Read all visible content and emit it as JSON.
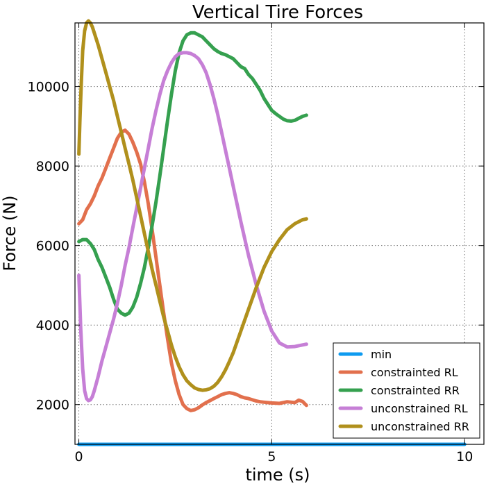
{
  "chart_data": {
    "type": "line",
    "title": "Vertical Tire Forces",
    "xlabel": "time (s)",
    "ylabel": "Force (N)",
    "xlim": [
      -0.1,
      10.5
    ],
    "ylim": [
      1000,
      11600
    ],
    "x_ticks": [
      0,
      5,
      10
    ],
    "y_ticks": [
      2000,
      4000,
      6000,
      8000,
      10000
    ],
    "x_tick_labels": [
      "0",
      "5",
      "10"
    ],
    "y_tick_labels": [
      "2000",
      "4000",
      "6000",
      "8000",
      "10000"
    ],
    "grid": true,
    "legend_position": "bottom-right",
    "series": [
      {
        "name": "min",
        "color": "#0e9bf0",
        "x": [
          0,
          10
        ],
        "y": [
          1000,
          1000
        ]
      },
      {
        "name": "constrainted RL",
        "color": "#e2704d",
        "x": [
          0,
          0.1,
          0.2,
          0.3,
          0.4,
          0.5,
          0.6,
          0.7,
          0.8,
          0.9,
          1.0,
          1.1,
          1.2,
          1.3,
          1.4,
          1.5,
          1.6,
          1.7,
          1.8,
          1.9,
          2.0,
          2.1,
          2.2,
          2.3,
          2.4,
          2.5,
          2.6,
          2.7,
          2.8,
          2.9,
          3.0,
          3.1,
          3.2,
          3.3,
          3.4,
          3.5,
          3.6,
          3.7,
          3.8,
          3.9,
          4.0,
          4.1,
          4.2,
          4.3,
          4.4,
          4.5,
          4.6,
          4.7,
          4.8,
          4.9,
          5.0,
          5.2,
          5.4,
          5.6,
          5.7,
          5.8,
          5.9
        ],
        "y": [
          6550,
          6650,
          6900,
          7050,
          7250,
          7500,
          7700,
          7950,
          8200,
          8450,
          8700,
          8850,
          8900,
          8800,
          8600,
          8350,
          8050,
          7600,
          7050,
          6400,
          5700,
          5000,
          4300,
          3650,
          3050,
          2600,
          2250,
          2000,
          1900,
          1850,
          1870,
          1920,
          1990,
          2050,
          2100,
          2150,
          2200,
          2250,
          2280,
          2300,
          2280,
          2250,
          2200,
          2170,
          2150,
          2120,
          2090,
          2070,
          2060,
          2050,
          2040,
          2030,
          2070,
          2050,
          2110,
          2080,
          1980
        ]
      },
      {
        "name": "constrainted RR",
        "color": "#35a04f",
        "x": [
          0,
          0.1,
          0.2,
          0.3,
          0.4,
          0.5,
          0.6,
          0.7,
          0.8,
          0.9,
          1.0,
          1.1,
          1.2,
          1.3,
          1.4,
          1.5,
          1.6,
          1.7,
          1.8,
          1.9,
          2.0,
          2.1,
          2.2,
          2.3,
          2.4,
          2.5,
          2.6,
          2.7,
          2.8,
          2.9,
          3.0,
          3.1,
          3.2,
          3.3,
          3.4,
          3.5,
          3.6,
          3.7,
          3.8,
          3.9,
          4.0,
          4.1,
          4.2,
          4.3,
          4.4,
          4.5,
          4.6,
          4.7,
          4.8,
          4.9,
          5.0,
          5.1,
          5.2,
          5.3,
          5.4,
          5.5,
          5.6,
          5.7,
          5.8,
          5.9
        ],
        "y": [
          6100,
          6150,
          6150,
          6050,
          5900,
          5650,
          5450,
          5200,
          4950,
          4650,
          4400,
          4300,
          4250,
          4300,
          4450,
          4700,
          5050,
          5450,
          5950,
          6500,
          7100,
          7750,
          8450,
          9150,
          9800,
          10400,
          10850,
          11150,
          11300,
          11350,
          11350,
          11300,
          11250,
          11150,
          11050,
          10950,
          10880,
          10830,
          10800,
          10750,
          10700,
          10600,
          10500,
          10450,
          10300,
          10200,
          10050,
          9900,
          9700,
          9550,
          9400,
          9320,
          9250,
          9180,
          9140,
          9130,
          9150,
          9200,
          9250,
          9280
        ]
      },
      {
        "name": "unconstrained RL",
        "color": "#c67fd6",
        "x": [
          0,
          0.05,
          0.1,
          0.15,
          0.2,
          0.25,
          0.3,
          0.35,
          0.4,
          0.5,
          0.6,
          0.7,
          0.8,
          0.9,
          1.0,
          1.1,
          1.2,
          1.3,
          1.4,
          1.5,
          1.6,
          1.7,
          1.8,
          1.9,
          2.0,
          2.1,
          2.2,
          2.3,
          2.4,
          2.5,
          2.6,
          2.7,
          2.8,
          2.9,
          3.0,
          3.1,
          3.2,
          3.3,
          3.4,
          3.5,
          3.6,
          3.7,
          3.8,
          3.9,
          4.0,
          4.2,
          4.4,
          4.6,
          4.8,
          5.0,
          5.2,
          5.4,
          5.6,
          5.8,
          5.9
        ],
        "y": [
          5250,
          3900,
          2900,
          2350,
          2150,
          2100,
          2120,
          2200,
          2350,
          2700,
          3100,
          3450,
          3800,
          4150,
          4550,
          5000,
          5500,
          5950,
          6450,
          6950,
          7450,
          7950,
          8450,
          8950,
          9400,
          9800,
          10150,
          10400,
          10600,
          10750,
          10830,
          10850,
          10850,
          10830,
          10780,
          10700,
          10550,
          10350,
          10050,
          9700,
          9300,
          8850,
          8400,
          7950,
          7500,
          6600,
          5750,
          5000,
          4350,
          3850,
          3550,
          3450,
          3460,
          3500,
          3520
        ]
      },
      {
        "name": "unconstrained RR",
        "color": "#b0901c",
        "x": [
          0,
          0.03,
          0.06,
          0.1,
          0.15,
          0.2,
          0.25,
          0.3,
          0.35,
          0.4,
          0.5,
          0.6,
          0.7,
          0.8,
          0.9,
          1.0,
          1.1,
          1.2,
          1.3,
          1.4,
          1.5,
          1.6,
          1.7,
          1.8,
          1.9,
          2.0,
          2.1,
          2.2,
          2.3,
          2.4,
          2.5,
          2.6,
          2.7,
          2.8,
          2.9,
          3.0,
          3.1,
          3.2,
          3.3,
          3.4,
          3.5,
          3.6,
          3.7,
          3.8,
          3.9,
          4.0,
          4.2,
          4.4,
          4.6,
          4.8,
          5.0,
          5.2,
          5.4,
          5.6,
          5.8,
          5.9
        ],
        "y": [
          8300,
          9200,
          10000,
          10900,
          11400,
          11600,
          11650,
          11600,
          11500,
          11350,
          11050,
          10700,
          10350,
          10000,
          9650,
          9250,
          8850,
          8450,
          8050,
          7650,
          7200,
          6750,
          6300,
          5850,
          5400,
          5000,
          4600,
          4200,
          3850,
          3500,
          3200,
          2950,
          2750,
          2600,
          2500,
          2420,
          2380,
          2360,
          2370,
          2400,
          2460,
          2560,
          2700,
          2870,
          3080,
          3300,
          3850,
          4400,
          4950,
          5450,
          5850,
          6150,
          6400,
          6550,
          6650,
          6670
        ]
      }
    ]
  }
}
